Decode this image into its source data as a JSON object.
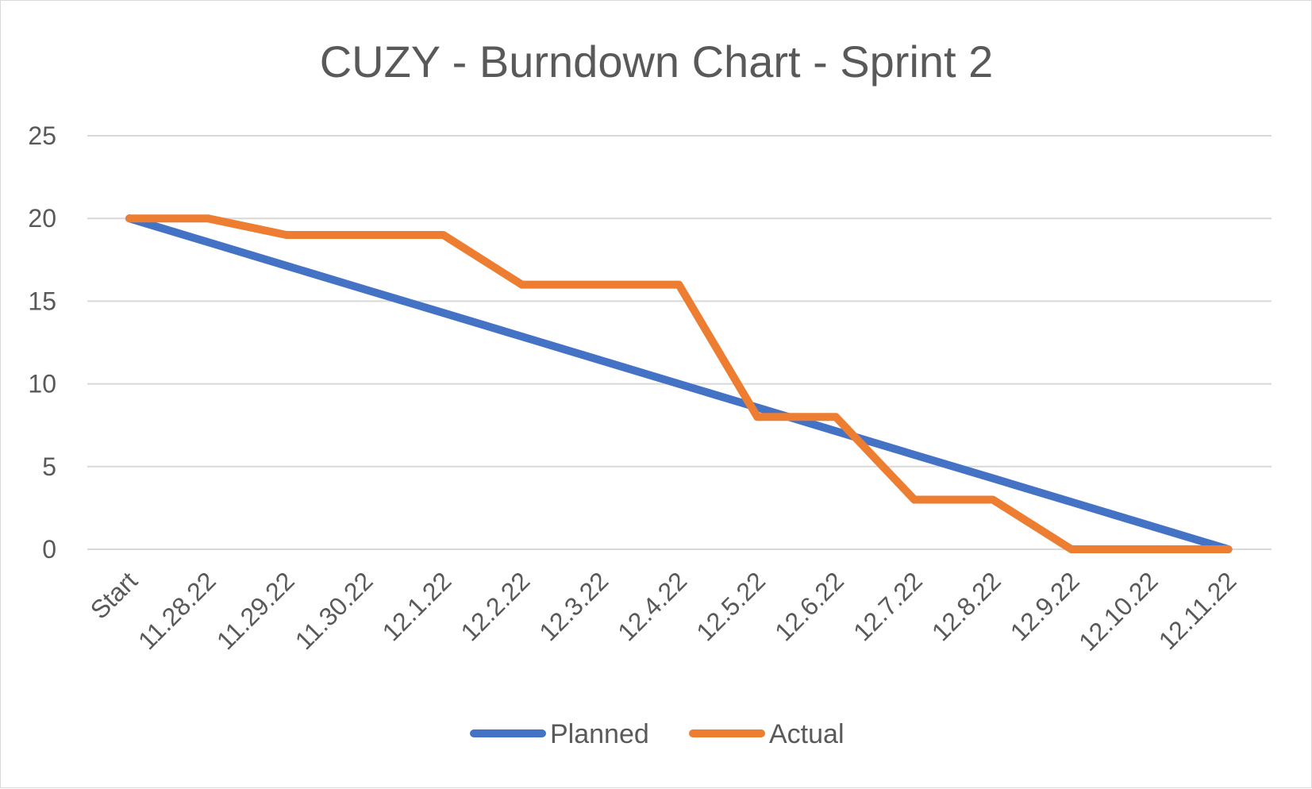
{
  "chart_data": {
    "type": "line",
    "title": "CUZY - Burndown Chart - Sprint 2",
    "xlabel": "",
    "ylabel": "",
    "categories": [
      "Start",
      "11.28.22",
      "11.29.22",
      "11.30.22",
      "12.1.22",
      "12.2.22",
      "12.3.22",
      "12.4.22",
      "12.5.22",
      "12.6.22",
      "12.7.22",
      "12.8.22",
      "12.9.22",
      "12.10.22",
      "12.11.22"
    ],
    "y_ticks": [
      "0",
      "5",
      "10",
      "15",
      "20",
      "25"
    ],
    "ylim": [
      0,
      25
    ],
    "grid": true,
    "legend_position": "bottom",
    "series": [
      {
        "name": "Planned",
        "color": "#4472C4",
        "values": [
          20,
          18.57,
          17.14,
          15.71,
          14.29,
          12.86,
          11.43,
          10,
          8.57,
          7.14,
          5.71,
          4.29,
          2.86,
          1.43,
          0
        ]
      },
      {
        "name": "Actual",
        "color": "#ED7D31",
        "values": [
          20,
          20,
          19,
          19,
          19,
          16,
          16,
          16,
          8,
          8,
          3,
          3,
          0,
          0,
          0
        ]
      }
    ]
  }
}
